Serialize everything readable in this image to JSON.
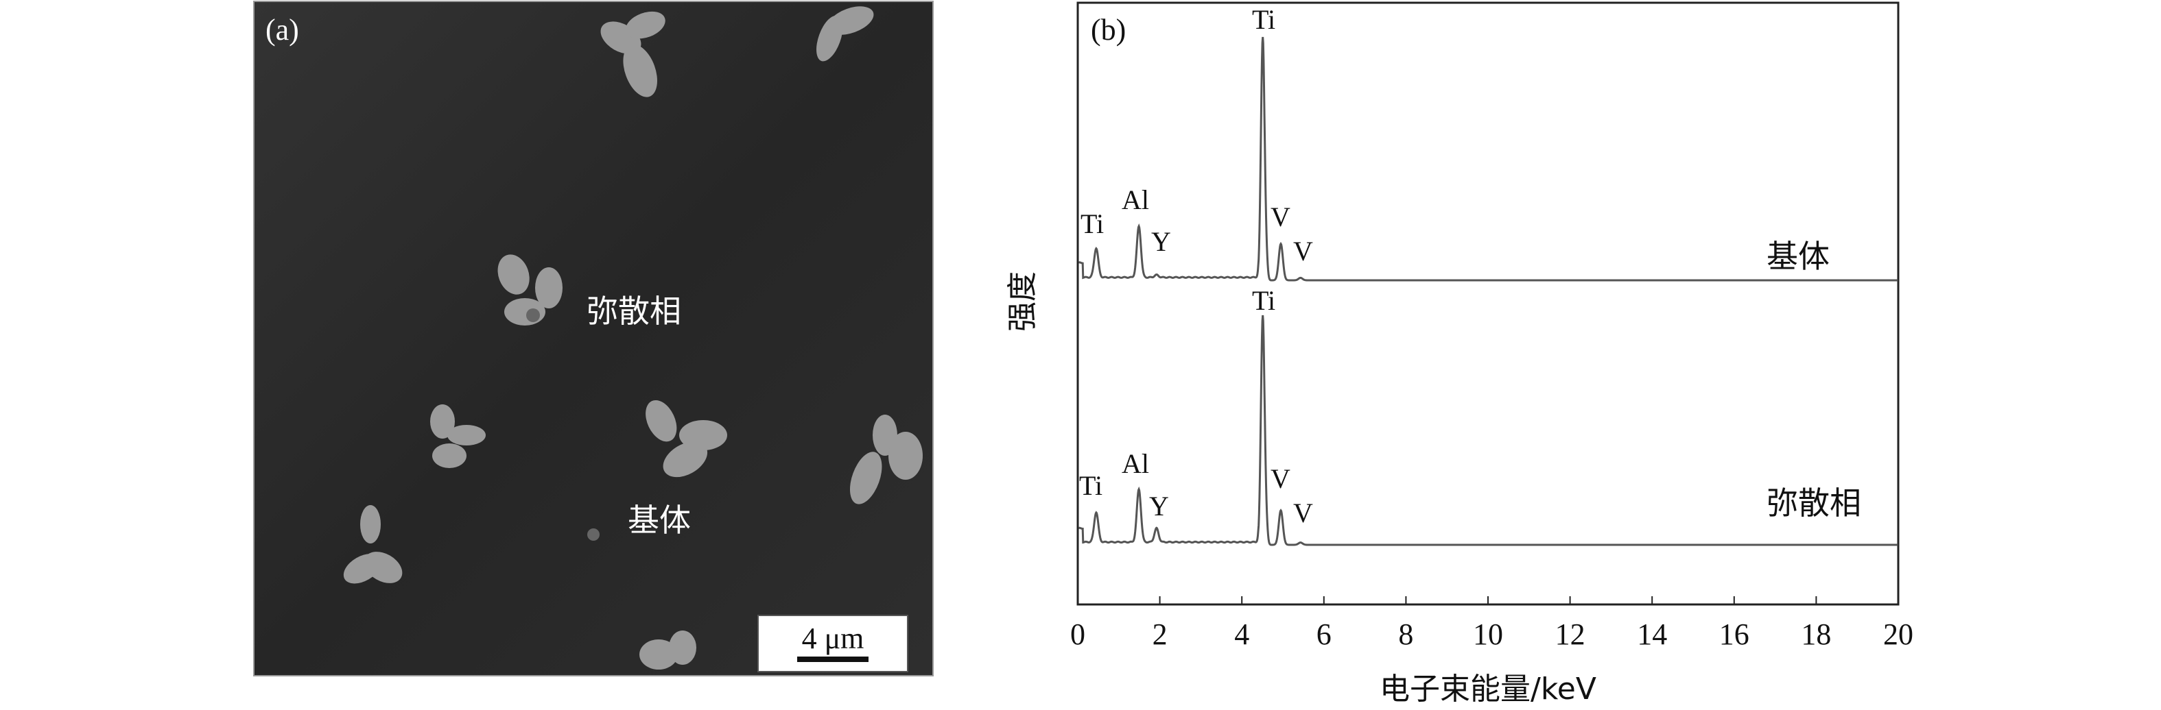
{
  "panel_a": {
    "label": "(a)",
    "annotations": {
      "dispersed_phase": "弥散相",
      "matrix": "基体"
    },
    "scale_bar": "4 μm",
    "colors": {
      "background": "#2b2b2b",
      "particles": "#b8b8b8"
    }
  },
  "chart_data": {
    "type": "line",
    "panel_label": "(b)",
    "xlabel": "电子束能量/keV",
    "ylabel": "强度",
    "xlim": [
      0,
      20
    ],
    "xticks": [
      "0",
      "2",
      "4",
      "6",
      "8",
      "10",
      "12",
      "14",
      "16",
      "18",
      "20"
    ],
    "grid": false,
    "line_color": "#555555",
    "series": [
      {
        "name": "基体",
        "peaks": [
          {
            "element": "Ti",
            "energy": 0.45,
            "height": 12
          },
          {
            "element": "Al",
            "energy": 1.49,
            "height": 21
          },
          {
            "element": "Y",
            "energy": 1.92,
            "height": 1
          },
          {
            "element": "Ti",
            "energy": 4.51,
            "height": 100
          },
          {
            "element": "V",
            "energy": 4.95,
            "height": 15
          },
          {
            "element": "V",
            "energy": 5.43,
            "height": 1
          }
        ]
      },
      {
        "name": "弥散相",
        "peaks": [
          {
            "element": "Ti",
            "energy": 0.45,
            "height": 13
          },
          {
            "element": "Al",
            "energy": 1.49,
            "height": 23
          },
          {
            "element": "Y",
            "energy": 1.92,
            "height": 6
          },
          {
            "element": "Ti",
            "energy": 4.51,
            "height": 100
          },
          {
            "element": "V",
            "energy": 4.95,
            "height": 15
          },
          {
            "element": "V",
            "energy": 5.43,
            "height": 1
          }
        ]
      }
    ]
  }
}
